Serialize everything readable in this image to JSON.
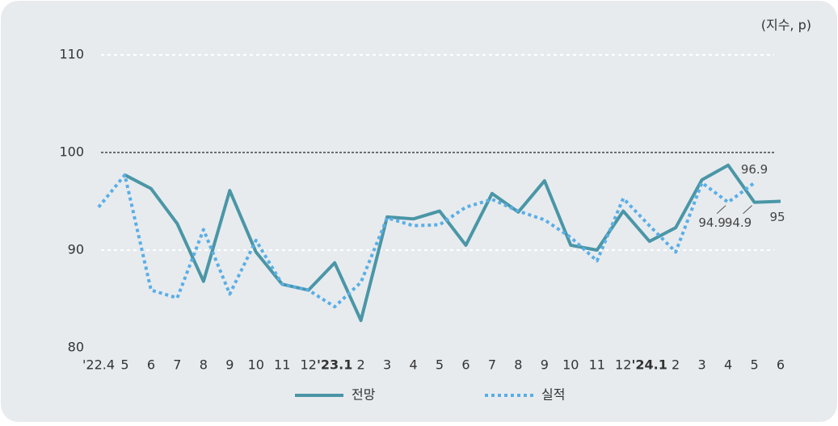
{
  "chart_data": {
    "type": "line",
    "unit_label": "(지수, p)",
    "categories": [
      "'22.4",
      "5",
      "6",
      "7",
      "8",
      "9",
      "10",
      "11",
      "12",
      "'23.1",
      "2",
      "3",
      "4",
      "5",
      "6",
      "7",
      "8",
      "9",
      "10",
      "11",
      "12",
      "'24.1",
      "2",
      "3",
      "4",
      "5",
      "6"
    ],
    "series": [
      {
        "name": "전망",
        "color": "#4a96a6",
        "style": "solid",
        "values": [
          null,
          97.7,
          96.3,
          92.7,
          86.8,
          96.1,
          89.8,
          86.5,
          85.9,
          88.7,
          82.8,
          93.4,
          93.2,
          94.0,
          90.5,
          95.8,
          93.9,
          97.1,
          90.5,
          90.0,
          94.0,
          90.9,
          92.3,
          97.2,
          98.7,
          94.9,
          95
        ],
        "value_labels": [
          null,
          null,
          null,
          null,
          null,
          null,
          null,
          null,
          null,
          null,
          null,
          null,
          null,
          null,
          null,
          null,
          null,
          null,
          null,
          null,
          null,
          null,
          null,
          null,
          null,
          "94.9",
          "95"
        ]
      },
      {
        "name": "실적",
        "color": "#5aaee6",
        "style": "dotted",
        "values": [
          94.4,
          97.7,
          85.9,
          85.1,
          92.1,
          85.5,
          91.0,
          86.5,
          85.9,
          84.2,
          86.7,
          93.3,
          92.5,
          92.6,
          94.4,
          95.2,
          94.0,
          93.1,
          91.3,
          88.9,
          95.3,
          92.5,
          89.8,
          96.9,
          94.9,
          96.9,
          null
        ],
        "value_labels": [
          null,
          null,
          null,
          null,
          null,
          null,
          null,
          null,
          null,
          null,
          null,
          null,
          null,
          null,
          null,
          null,
          null,
          null,
          null,
          null,
          null,
          null,
          null,
          null,
          "94.9",
          "96.9",
          null
        ]
      }
    ],
    "ylim": [
      80,
      110
    ],
    "yticks": [
      80,
      90,
      100,
      110
    ],
    "grid": true,
    "reference_line": 100
  }
}
